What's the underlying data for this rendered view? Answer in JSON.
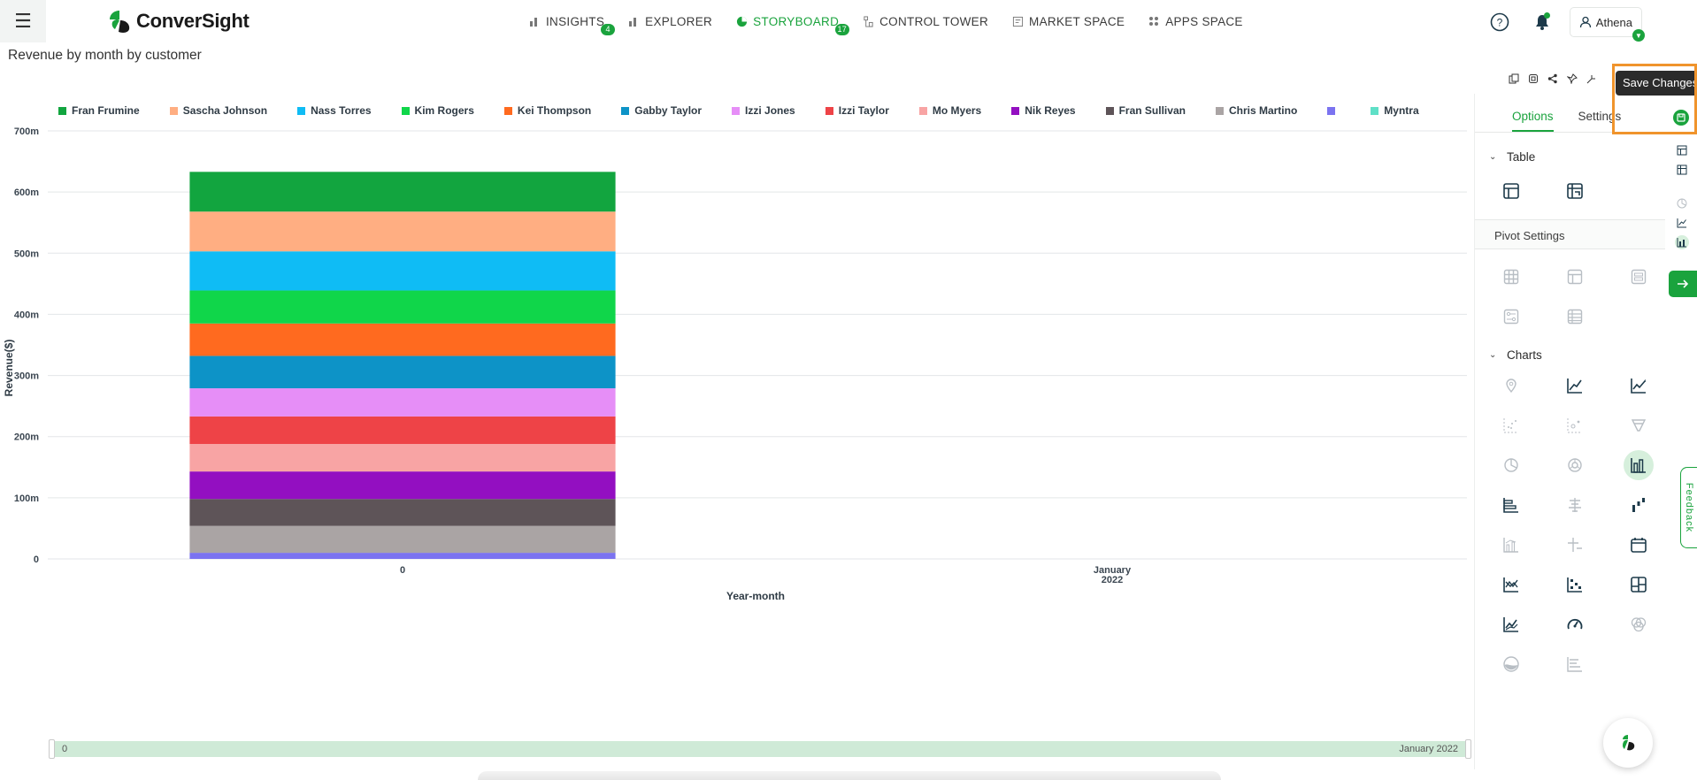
{
  "app": {
    "brand": "ConverSight",
    "colors": {
      "accent": "#1aa33d",
      "highlight": "#f0942c"
    }
  },
  "nav": {
    "items": [
      {
        "label": "INSIGHTS",
        "icon": "bar-chart-icon",
        "badge": "4",
        "active": false
      },
      {
        "label": "EXPLORER",
        "icon": "bar-chart-icon",
        "badge": "",
        "active": false
      },
      {
        "label": "STORYBOARD",
        "icon": "pie-icon",
        "badge": "17",
        "active": true
      },
      {
        "label": "CONTROL TOWER",
        "icon": "tower-icon",
        "badge": "",
        "active": false
      },
      {
        "label": "MARKET SPACE",
        "icon": "store-icon",
        "badge": "",
        "active": false
      },
      {
        "label": "APPS SPACE",
        "icon": "apps-icon",
        "badge": "",
        "active": false
      }
    ]
  },
  "user": {
    "name": "Athena"
  },
  "page": {
    "title": "Revenue by month by customer"
  },
  "tooltip": {
    "save": "Save Changes"
  },
  "panel": {
    "tabs": [
      {
        "label": "Options",
        "active": true
      },
      {
        "label": "Settings",
        "active": false
      }
    ],
    "table_section": "Table",
    "pivot_section": "Pivot Settings",
    "charts_section": "Charts",
    "selected_chart": "column-chart-icon"
  },
  "feedback": {
    "label": "Feedback"
  },
  "zoom": {
    "left_label": "0",
    "right_label": "January 2022"
  },
  "chart_data": {
    "type": "bar",
    "stacked": true,
    "title": "",
    "xlabel": "Year-month",
    "ylabel": "Revenue($)",
    "categories": [
      "0",
      "January 2022"
    ],
    "category_tick_lines": [
      [
        "0"
      ],
      [
        "January",
        "2022"
      ]
    ],
    "ylim": [
      0,
      700000000
    ],
    "yticks": [
      0,
      100000000,
      200000000,
      300000000,
      400000000,
      500000000,
      600000000,
      700000000
    ],
    "ytick_labels": [
      "0",
      "100m",
      "200m",
      "300m",
      "400m",
      "500m",
      "600m",
      "700m"
    ],
    "grid": true,
    "legend_position": "top",
    "series": [
      {
        "name": "Fran Frumine",
        "color": "#12a53f",
        "values": [
          65000000,
          0
        ]
      },
      {
        "name": "Sascha Johnson",
        "color": "#ffae82",
        "values": [
          65000000,
          0
        ]
      },
      {
        "name": "Nass Torres",
        "color": "#0fbcf5",
        "values": [
          64000000,
          0
        ]
      },
      {
        "name": "Kim Rogers",
        "color": "#10d64a",
        "values": [
          54000000,
          0
        ]
      },
      {
        "name": "Kei Thompson",
        "color": "#ff6a1f",
        "values": [
          53000000,
          0
        ]
      },
      {
        "name": "Gabby Taylor",
        "color": "#0d93c7",
        "values": [
          53000000,
          0
        ]
      },
      {
        "name": "Izzi Jones",
        "color": "#e68ef7",
        "values": [
          46000000,
          0
        ]
      },
      {
        "name": "Izzi Taylor",
        "color": "#ee4347",
        "values": [
          45000000,
          0
        ]
      },
      {
        "name": "Mo Myers",
        "color": "#f8a4a4",
        "values": [
          45000000,
          0
        ]
      },
      {
        "name": "Nik Reyes",
        "color": "#930fc1",
        "values": [
          45000000,
          0
        ]
      },
      {
        "name": "Fran Sullivan",
        "color": "#5e5458",
        "values": [
          44000000,
          0
        ]
      },
      {
        "name": "Chris Martino",
        "color": "#aaa4a4",
        "values": [
          44000000,
          0
        ]
      },
      {
        "name": "",
        "color": "#7b73f0",
        "values": [
          10000000,
          0
        ]
      },
      {
        "name": "Myntra",
        "color": "#5fe0c7",
        "values": [
          0,
          0
        ]
      }
    ]
  }
}
